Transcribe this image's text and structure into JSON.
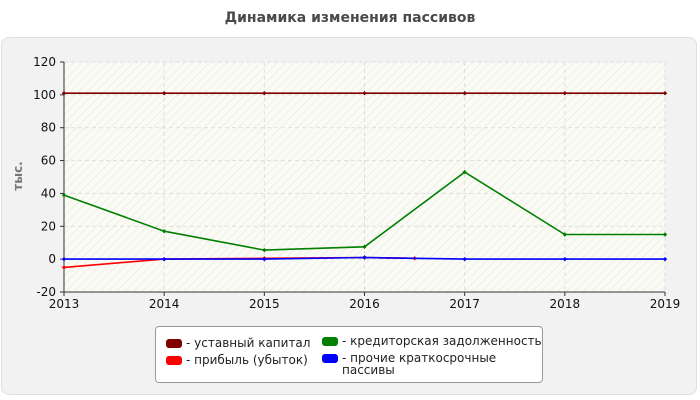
{
  "chart_data": {
    "type": "line",
    "title": "Динамика изменения пассивов",
    "xlabel": "",
    "ylabel": "тыс.",
    "x": [
      2013,
      2014,
      2015,
      2016,
      2017,
      2018,
      2019
    ],
    "xlim": [
      2013,
      2019
    ],
    "ylim": [
      -20,
      120
    ],
    "yticks": [
      -20,
      0,
      20,
      40,
      60,
      80,
      100,
      120
    ],
    "grid": true,
    "legend_position": "bottom",
    "series": [
      {
        "name": "уставный капитал",
        "color": "#800000",
        "points": [
          [
            2013,
            101
          ],
          [
            2014,
            101
          ],
          [
            2015,
            101
          ],
          [
            2016,
            101
          ],
          [
            2017,
            101
          ],
          [
            2018,
            101
          ],
          [
            2019,
            101
          ]
        ]
      },
      {
        "name": "прибыль (убыток)",
        "color": "#ff0000",
        "points": [
          [
            2013,
            -5
          ],
          [
            2014,
            0
          ],
          [
            2015,
            0.5
          ],
          [
            2016,
            1
          ],
          [
            2016.5,
            0.5
          ]
        ]
      },
      {
        "name": "кредиторская задолженность",
        "color": "#008000",
        "points": [
          [
            2013,
            39
          ],
          [
            2014,
            17
          ],
          [
            2015,
            5.5
          ],
          [
            2016,
            7.5
          ],
          [
            2017,
            53
          ],
          [
            2018,
            15
          ],
          [
            2019,
            15
          ]
        ]
      },
      {
        "name": "прочие краткосрочные пассивы",
        "color": "#0000ff",
        "points": [
          [
            2013,
            0
          ],
          [
            2014,
            0
          ],
          [
            2015,
            0
          ],
          [
            2016,
            1
          ],
          [
            2017,
            0
          ],
          [
            2018,
            0
          ],
          [
            2019,
            0
          ]
        ]
      }
    ]
  },
  "legend": {
    "items": [
      {
        "label": "- уставный капитал",
        "color": "#800000"
      },
      {
        "label": "- кредиторская задолженность",
        "color": "#008000"
      },
      {
        "label": "- прибыль (убыток)",
        "color": "#ff0000"
      },
      {
        "label": "- прочие краткосрочные пассивы",
        "color": "#0000ff"
      }
    ]
  }
}
